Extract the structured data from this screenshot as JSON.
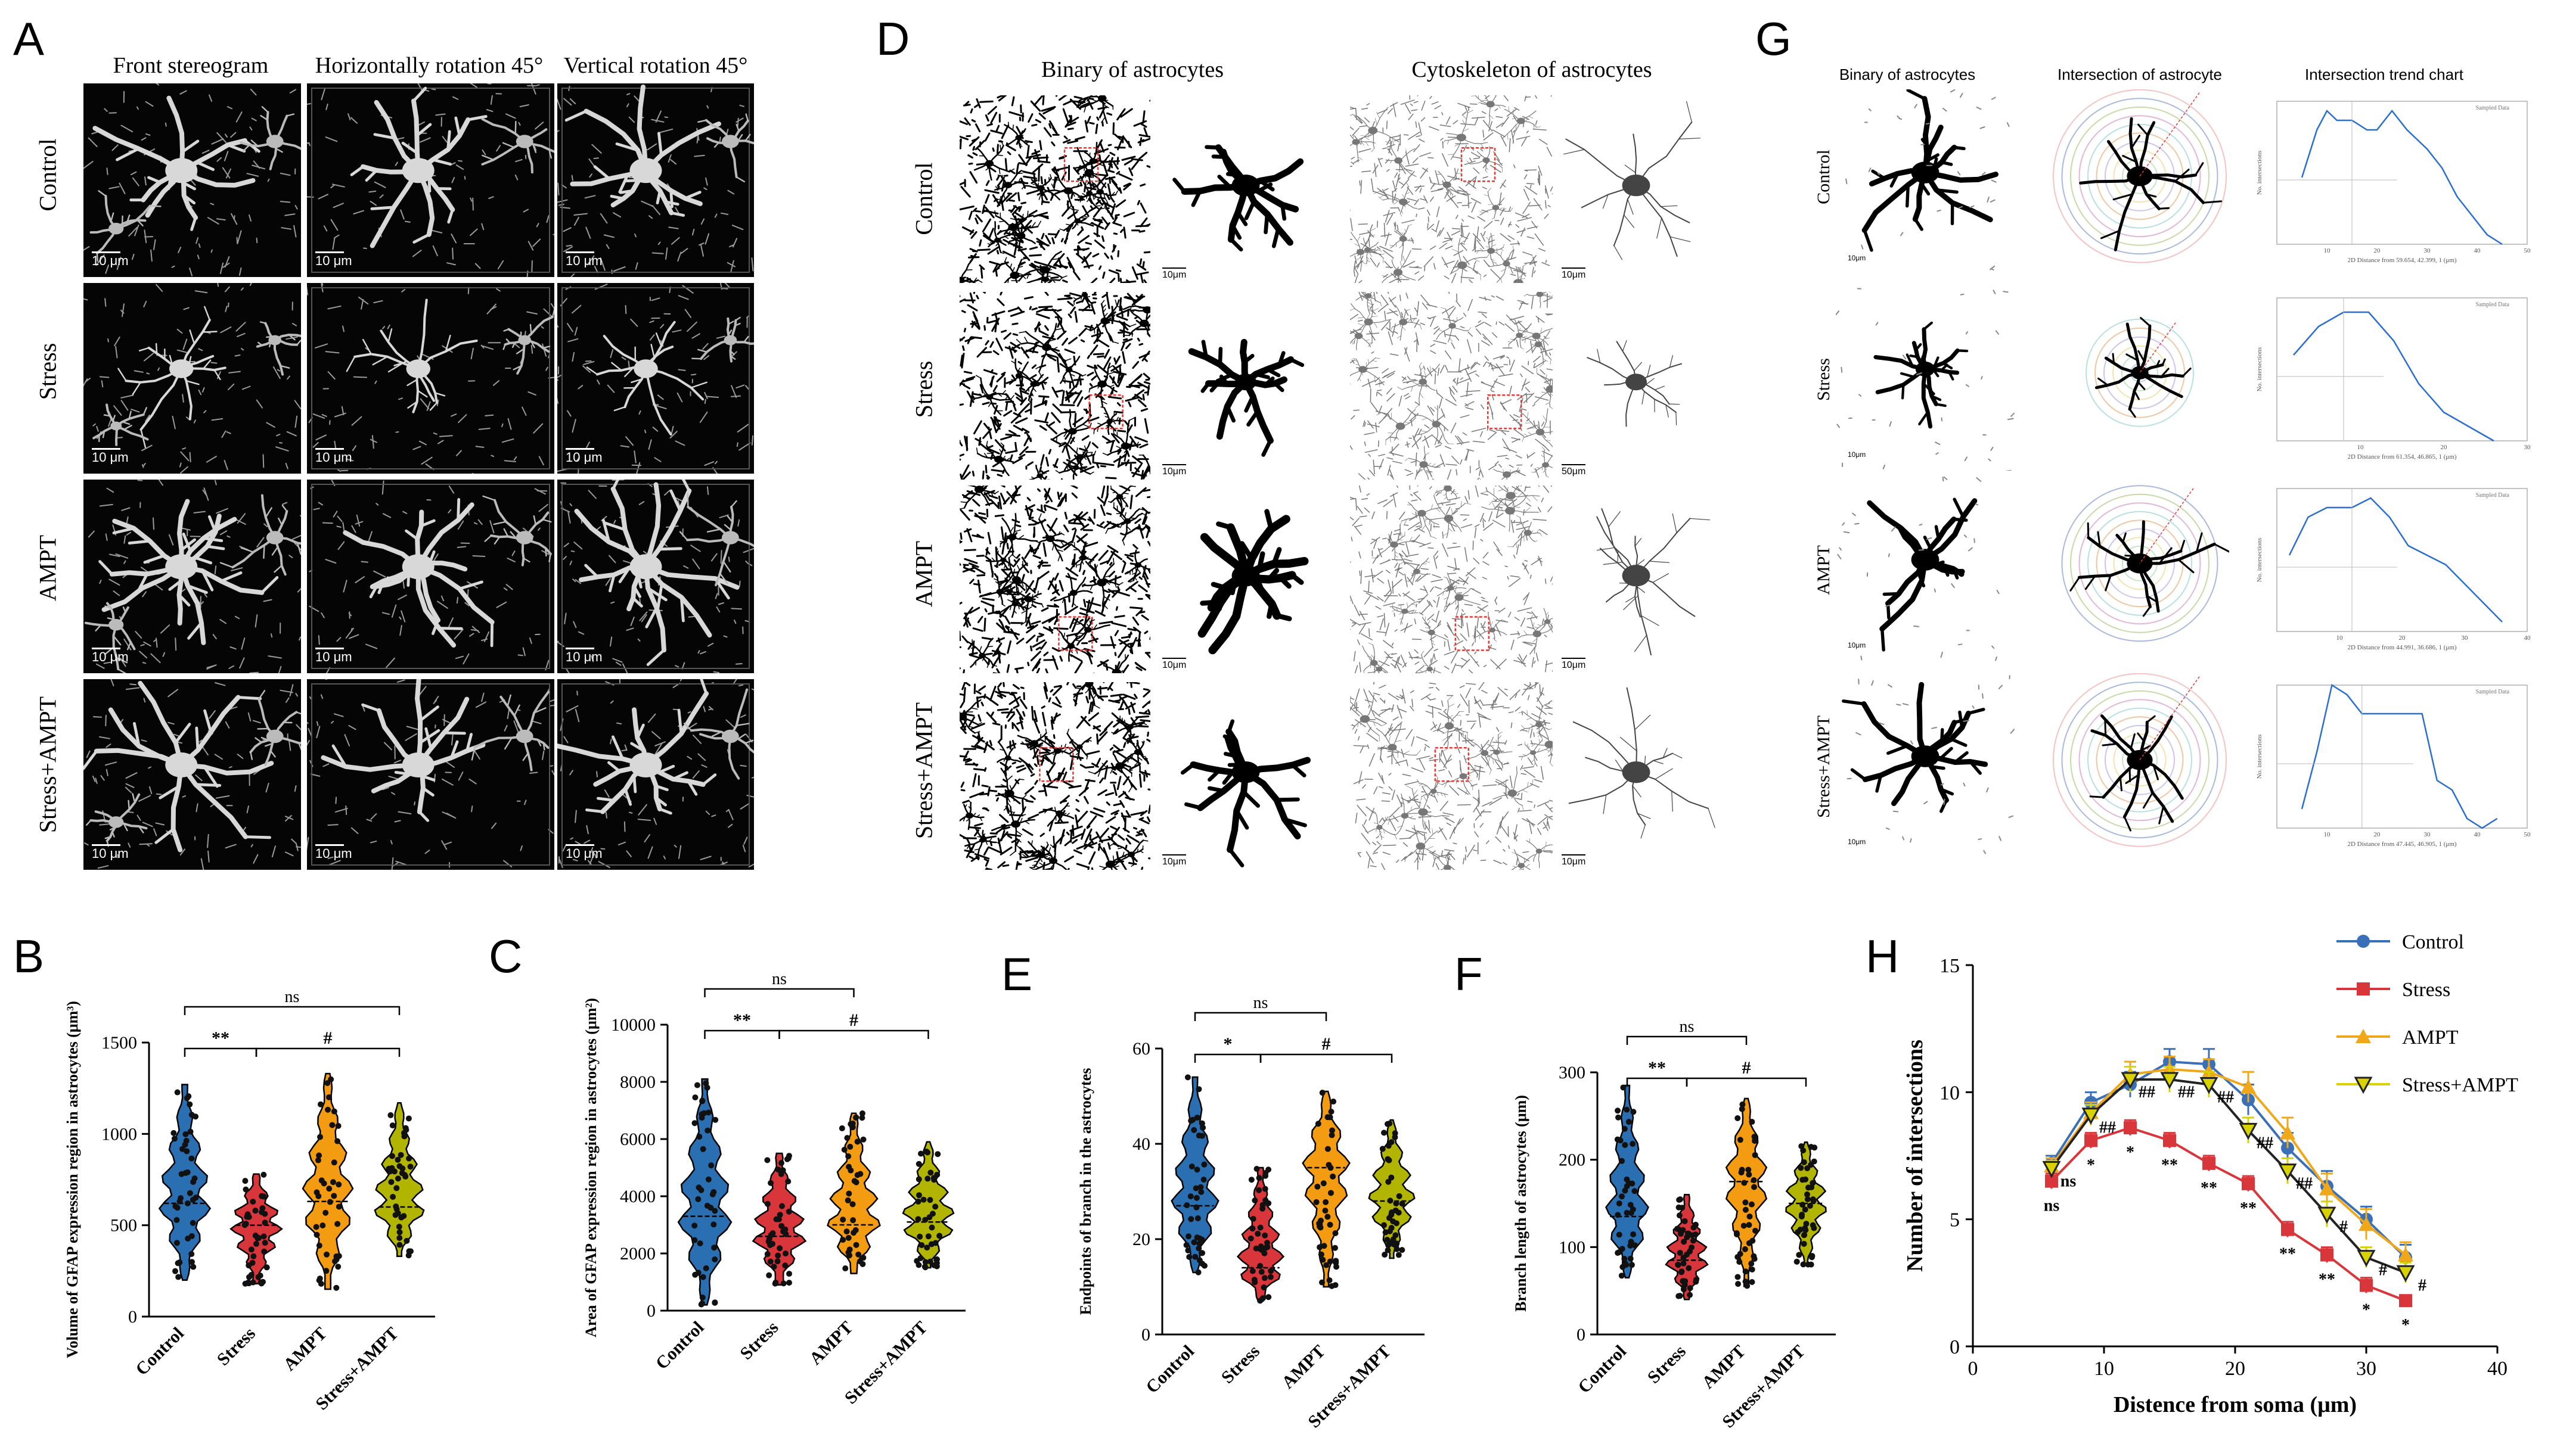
{
  "panels": {
    "A": "A",
    "B": "B",
    "C": "C",
    "D": "D",
    "E": "E",
    "F": "F",
    "G": "G",
    "H": "H"
  },
  "panelA": {
    "columns": [
      "Front stereogram",
      "Horizontally rotation 45°",
      "Vertical rotation 45°"
    ],
    "rows": [
      "Control",
      "Stress",
      "AMPT",
      "Stress+AMPT"
    ],
    "scalebar": "10 μm"
  },
  "panelD": {
    "columns": [
      "Binary of astrocytes",
      "Cytoskeleton of astrocytes"
    ],
    "rows": [
      "Control",
      "Stress",
      "AMPT",
      "Stress+AMPT"
    ],
    "scalebar": "10μm",
    "scalebar_stress": "50μm"
  },
  "panelG": {
    "columns": [
      "Binary of astrocytes",
      "Intersection of astrocyte",
      "Intersection trend chart"
    ],
    "rows": [
      "Control",
      "Stress",
      "AMPT",
      "Stress+AMPT"
    ],
    "scalebar": "10μm",
    "mini_legend": [
      "Sampled Data"
    ],
    "mini_xlabels": [
      "2D Distance from 59.654, 42.399, 1 (μm)",
      "2D Distance from 61.354, 46.865, 1 (μm)",
      "2D Distance from 44.991, 36.686, 1 (μm)",
      "2D Distance from 47.445, 46.905, 1 (μm)"
    ],
    "mini_ylabel": "No. intersections",
    "mini_series": [
      {
        "x": [
          5,
          8,
          10,
          12,
          15,
          18,
          20,
          23,
          26,
          30,
          33,
          36,
          39,
          42,
          45
        ],
        "y": [
          7,
          12,
          14,
          13,
          13,
          12,
          12,
          14,
          12,
          10,
          8,
          5,
          3,
          1,
          0
        ],
        "xlim": [
          0,
          50
        ],
        "ylim": [
          0,
          15
        ],
        "ticks": [
          10,
          20,
          30,
          40,
          50
        ]
      },
      {
        "x": [
          2,
          5,
          8,
          11,
          14,
          17,
          20,
          23,
          26
        ],
        "y": [
          6,
          8,
          9,
          9,
          7,
          4,
          2,
          1,
          0
        ],
        "xlim": [
          0,
          30
        ],
        "ylim": [
          0,
          10
        ],
        "ticks": [
          10,
          20,
          30
        ]
      },
      {
        "x": [
          2,
          5,
          8,
          12,
          15,
          18,
          21,
          24,
          27,
          30,
          33,
          36
        ],
        "y": [
          8,
          12,
          13,
          13,
          14,
          12,
          9,
          8,
          7,
          5,
          3,
          1
        ],
        "xlim": [
          0,
          40
        ],
        "ylim": [
          0,
          15
        ],
        "ticks": [
          10,
          20,
          30,
          40
        ]
      },
      {
        "x": [
          5,
          8,
          11,
          14,
          17,
          20,
          23,
          26,
          29,
          32,
          35,
          38,
          41,
          44
        ],
        "y": [
          2,
          8,
          15,
          14,
          12,
          12,
          12,
          12,
          12,
          5,
          4,
          1,
          0,
          1
        ],
        "xlim": [
          0,
          50
        ],
        "ylim": [
          0,
          15
        ],
        "ticks": [
          10,
          20,
          30,
          40,
          50
        ]
      }
    ]
  },
  "chart_data": [
    {
      "panel": "B",
      "type": "violin",
      "categories": [
        "Control",
        "Stress",
        "AMPT",
        "Stress+AMPT"
      ],
      "ylabel": "Volume of GFAP expression region in astrocytes (μm³)",
      "ylim": [
        0,
        1500
      ],
      "yticks": [
        0,
        500,
        1000,
        1500
      ],
      "colors": [
        "#2a6fb2",
        "#d9363b",
        "#f39c12",
        "#b2b500"
      ],
      "medians": [
        620,
        500,
        630,
        600
      ],
      "min": [
        200,
        180,
        150,
        330
      ],
      "max": [
        1270,
        780,
        1330,
        1170
      ],
      "significance": [
        {
          "from": 0,
          "to": 3,
          "label": "ns"
        },
        {
          "from": 0,
          "to": 1,
          "label": "**"
        },
        {
          "from": 1,
          "to": 3,
          "label": "#"
        }
      ]
    },
    {
      "panel": "C",
      "type": "violin",
      "categories": [
        "Control",
        "Stress",
        "AMPT",
        "Stress+AMPT"
      ],
      "ylabel": "Area of GFAP expression region in astrocytes (μm²)",
      "ylim": [
        0,
        10000
      ],
      "yticks": [
        0,
        2000,
        4000,
        6000,
        8000,
        10000
      ],
      "colors": [
        "#2a6fb2",
        "#d9363b",
        "#f39c12",
        "#b2b500"
      ],
      "medians": [
        3300,
        2600,
        3000,
        3100
      ],
      "min": [
        200,
        900,
        1300,
        1500
      ],
      "max": [
        8100,
        5500,
        6900,
        5900
      ],
      "significance": [
        {
          "from": 0,
          "to": 2,
          "label": "ns"
        },
        {
          "from": 0,
          "to": 1,
          "label": "**"
        },
        {
          "from": 1,
          "to": 3,
          "label": "#"
        }
      ]
    },
    {
      "panel": "E",
      "type": "violin",
      "categories": [
        "Control",
        "Stress",
        "AMPT",
        "Stress+AMPT"
      ],
      "ylabel": "Endpoints of branch in the astrocytes",
      "ylim": [
        0,
        60
      ],
      "yticks": [
        0,
        20,
        40,
        60
      ],
      "colors": [
        "#2a6fb2",
        "#d9363b",
        "#f39c12",
        "#b2b500"
      ],
      "medians": [
        27,
        14,
        35,
        28
      ],
      "min": [
        13,
        7,
        10,
        16
      ],
      "max": [
        54,
        35,
        51,
        45
      ],
      "significance": [
        {
          "from": 0,
          "to": 2,
          "label": "ns"
        },
        {
          "from": 0,
          "to": 1,
          "label": "*"
        },
        {
          "from": 1,
          "to": 3,
          "label": "#"
        }
      ]
    },
    {
      "panel": "F",
      "type": "violin",
      "categories": [
        "Control",
        "Stress",
        "AMPT",
        "Stress+AMPT"
      ],
      "ylabel": "Branch length of astrocytes (μm)",
      "ylim": [
        0,
        300
      ],
      "yticks": [
        0,
        100,
        200,
        300
      ],
      "colors": [
        "#2a6fb2",
        "#d9363b",
        "#f39c12",
        "#b2b500"
      ],
      "medians": [
        135,
        85,
        175,
        150
      ],
      "min": [
        65,
        40,
        55,
        80
      ],
      "max": [
        285,
        160,
        270,
        220
      ],
      "significance": [
        {
          "from": 0,
          "to": 2,
          "label": "ns"
        },
        {
          "from": 0,
          "to": 1,
          "label": "**"
        },
        {
          "from": 1,
          "to": 3,
          "label": "#"
        }
      ]
    },
    {
      "panel": "H",
      "type": "line",
      "xlabel": "Distence from soma (μm)",
      "ylabel": "Number of intersections",
      "xlim": [
        0,
        40
      ],
      "ylim": [
        0,
        15
      ],
      "xticks": [
        0,
        10,
        20,
        30,
        40
      ],
      "yticks": [
        0,
        5,
        10,
        15
      ],
      "x": [
        6,
        9,
        12,
        15,
        18,
        21,
        24,
        27,
        30,
        33
      ],
      "series": [
        {
          "name": "Control",
          "color": "#3a70b8",
          "marker": "circle",
          "values": [
            7.2,
            9.6,
            10.3,
            11.2,
            11.1,
            9.7,
            7.8,
            6.3,
            5.0,
            3.5
          ],
          "err": [
            0.3,
            0.4,
            0.5,
            0.5,
            0.6,
            0.6,
            0.6,
            0.6,
            0.5,
            0.5
          ]
        },
        {
          "name": "Stress",
          "color": "#d9363b",
          "marker": "square",
          "values": [
            6.5,
            8.1,
            8.6,
            8.1,
            7.2,
            6.4,
            4.6,
            3.6,
            2.4,
            1.8
          ],
          "err": [
            0.3,
            0.3,
            0.3,
            0.3,
            0.3,
            0.3,
            0.3,
            0.3,
            0.3,
            0.2
          ]
        },
        {
          "name": "AMPT",
          "color": "#f0a81a",
          "marker": "triangle",
          "values": [
            7.1,
            9.2,
            10.7,
            10.9,
            10.8,
            10.2,
            8.4,
            6.2,
            4.8,
            3.6
          ],
          "err": [
            0.3,
            0.4,
            0.5,
            0.5,
            0.5,
            0.6,
            0.6,
            0.6,
            0.6,
            0.5
          ]
        },
        {
          "name": "Stress+AMPT",
          "color": "#222222",
          "fill": "#d8d200",
          "marker": "triangle-down",
          "values": [
            7.0,
            9.1,
            10.5,
            10.5,
            10.3,
            8.5,
            6.9,
            5.2,
            3.5,
            2.9
          ],
          "err": [
            0.3,
            0.4,
            0.5,
            0.5,
            0.5,
            0.5,
            0.5,
            0.5,
            0.4,
            0.4
          ]
        }
      ],
      "annotations": [
        {
          "x": 6,
          "label": "ns",
          "series": "Stress"
        },
        {
          "x": 6,
          "label": "ns",
          "series": "Stress+AMPT"
        },
        {
          "x": 9,
          "label": "*",
          "series": "Stress"
        },
        {
          "x": 9,
          "label": "##",
          "series": "Stress+AMPT"
        },
        {
          "x": 12,
          "label": "*",
          "series": "Stress"
        },
        {
          "x": 12,
          "label": "##",
          "series": "Stress+AMPT"
        },
        {
          "x": 15,
          "label": "**",
          "series": "Stress"
        },
        {
          "x": 15,
          "label": "##",
          "series": "Stress+AMPT"
        },
        {
          "x": 18,
          "label": "**",
          "series": "Stress"
        },
        {
          "x": 18,
          "label": "##",
          "series": "Stress+AMPT"
        },
        {
          "x": 21,
          "label": "**",
          "series": "Stress"
        },
        {
          "x": 21,
          "label": "##",
          "series": "Stress+AMPT"
        },
        {
          "x": 24,
          "label": "**",
          "series": "Stress"
        },
        {
          "x": 24,
          "label": "##",
          "series": "Stress+AMPT"
        },
        {
          "x": 27,
          "label": "**",
          "series": "Stress"
        },
        {
          "x": 27,
          "label": "#",
          "series": "Stress+AMPT"
        },
        {
          "x": 30,
          "label": "*",
          "series": "Stress"
        },
        {
          "x": 30,
          "label": "#",
          "series": "Stress+AMPT"
        },
        {
          "x": 33,
          "label": "*",
          "series": "Stress"
        },
        {
          "x": 33,
          "label": "#",
          "series": "Stress+AMPT"
        }
      ]
    }
  ]
}
